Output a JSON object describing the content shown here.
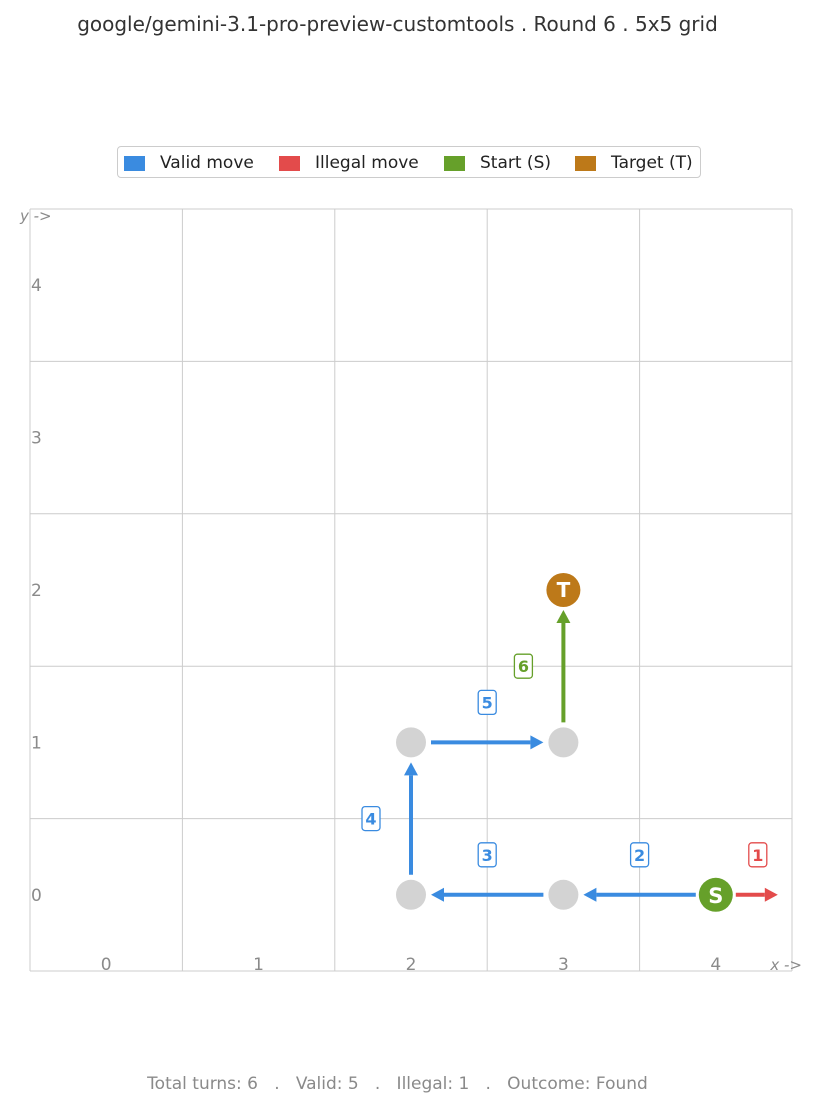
{
  "title": "google/gemini-3.1-pro-preview-customtools  .  Round 6  .  5x5 grid",
  "legend": [
    {
      "label": "Valid move",
      "color": "#3a8be0"
    },
    {
      "label": "Illegal move",
      "color": "#e34b4b"
    },
    {
      "label": "Start (S)",
      "color": "#66a02a"
    },
    {
      "label": "Target (T)",
      "color": "#bd7919"
    }
  ],
  "grid": {
    "size": 5,
    "x_ticks": [
      "0",
      "1",
      "2",
      "3",
      "4"
    ],
    "y_ticks": [
      "0",
      "1",
      "2",
      "3",
      "4"
    ],
    "x_axis_label": "x ->",
    "y_axis_label": "y ->"
  },
  "visited_cells": [
    [
      2,
      0
    ],
    [
      3,
      0
    ],
    [
      2,
      1
    ],
    [
      3,
      1
    ]
  ],
  "start": {
    "x": 4,
    "y": 0,
    "label": "S"
  },
  "target": {
    "x": 3,
    "y": 2,
    "label": "T"
  },
  "moves": [
    {
      "n": "1",
      "from": [
        4,
        0
      ],
      "to": [
        5,
        0
      ],
      "kind": "illegal"
    },
    {
      "n": "2",
      "from": [
        4,
        0
      ],
      "to": [
        3,
        0
      ],
      "kind": "valid"
    },
    {
      "n": "3",
      "from": [
        3,
        0
      ],
      "to": [
        2,
        0
      ],
      "kind": "valid"
    },
    {
      "n": "4",
      "from": [
        2,
        0
      ],
      "to": [
        2,
        1
      ],
      "kind": "valid"
    },
    {
      "n": "5",
      "from": [
        2,
        1
      ],
      "to": [
        3,
        1
      ],
      "kind": "valid"
    },
    {
      "n": "6",
      "from": [
        3,
        1
      ],
      "to": [
        3,
        2
      ],
      "kind": "final"
    }
  ],
  "colors": {
    "valid": "#3a8be0",
    "illegal": "#e34b4b",
    "final": "#66a02a",
    "start": "#66a02a",
    "target": "#bd7919",
    "visited": "#d3d3d3",
    "grid": "#cccccc",
    "tick": "#8a8a8a"
  },
  "footer": "Total turns: 6   .   Valid: 5   .   Illegal: 1   .   Outcome: Found"
}
